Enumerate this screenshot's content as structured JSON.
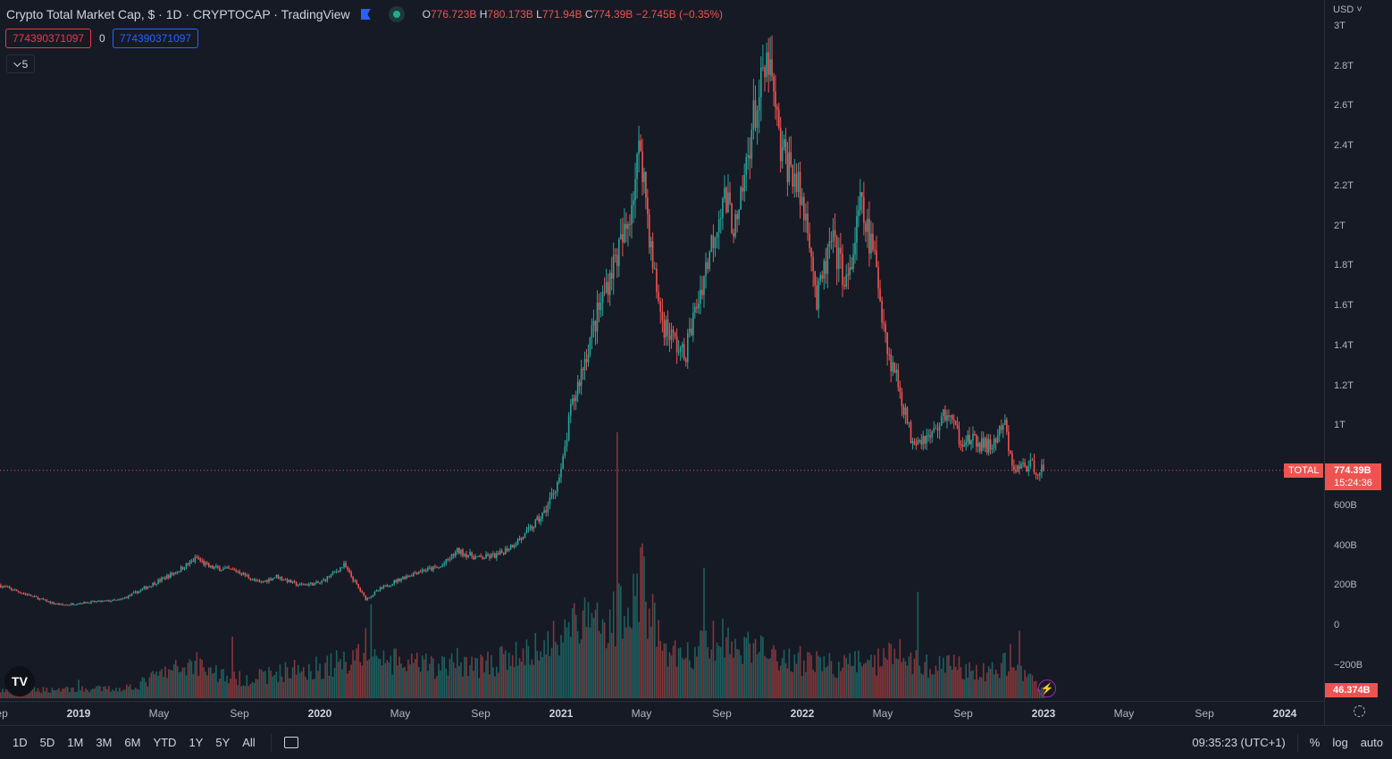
{
  "header": {
    "title": "Crypto Total Market Cap, $ · 1D · CRYPTOCAP · TradingView",
    "ohlc": {
      "o_label": "O",
      "o": "776.723B",
      "h_label": "H",
      "h": "780.173B",
      "l_label": "L",
      "l": "771.94B",
      "c_label": "C",
      "c": "774.39B",
      "change": "−2.745B (−0.35%)"
    },
    "badge_left": "774390371097",
    "badge_mid": "0",
    "badge_right": "774390371097",
    "collapse_count": "5"
  },
  "price_axis": {
    "currency": "USD",
    "labels": [
      "3T",
      "2.8T",
      "2.6T",
      "2.4T",
      "2.2T",
      "2T",
      "1.8T",
      "1.6T",
      "1.4T",
      "1.2T",
      "1T",
      "600B",
      "400B",
      "200B",
      "0",
      "−200B"
    ],
    "values": [
      3,
      2.8,
      2.6,
      2.4,
      2.2,
      2,
      1.8,
      1.6,
      1.4,
      1.2,
      1,
      0.6,
      0.4,
      0.2,
      0,
      -0.2
    ],
    "symbol_tag": "TOTAL",
    "last_price": "774.39B",
    "countdown": "15:24:36",
    "volume_tag": "46.374B"
  },
  "time_axis": {
    "labels": [
      "Sep",
      "2019",
      "May",
      "Sep",
      "2020",
      "May",
      "Sep",
      "2021",
      "May",
      "Sep",
      "2022",
      "May",
      "Sep",
      "2023",
      "May",
      "Sep",
      "2024"
    ],
    "positions": [
      2018.667,
      2019,
      2019.333,
      2019.667,
      2020,
      2020.333,
      2020.667,
      2021,
      2021.333,
      2021.667,
      2022,
      2022.333,
      2022.667,
      2023,
      2023.333,
      2023.667,
      2024
    ]
  },
  "toolbar": {
    "ranges": [
      "1D",
      "5D",
      "1M",
      "3M",
      "6M",
      "YTD",
      "1Y",
      "5Y",
      "All"
    ],
    "clock": "09:35:23 (UTC+1)",
    "percent": "%",
    "log": "log",
    "auto": "auto"
  },
  "colors": {
    "up": "#26a69a",
    "down": "#ef5350",
    "bg": "#161a25",
    "blue": "#2962ff"
  },
  "chart_data": {
    "type": "candlestick",
    "title": "Crypto Total Market Cap",
    "ylabel": "USD (trillions)",
    "ylim": [
      -0.3,
      3.05
    ],
    "xlim": [
      2018.67,
      2024.15
    ],
    "t": [
      2018.67,
      2018.89,
      2018.94,
      2019.0,
      2019.17,
      2019.25,
      2019.33,
      2019.41,
      2019.49,
      2019.54,
      2019.6,
      2019.66,
      2019.75,
      2019.82,
      2019.91,
      2020.0,
      2020.1,
      2020.19,
      2020.25,
      2020.33,
      2020.41,
      2020.5,
      2020.57,
      2020.66,
      2020.74,
      2020.85,
      2020.93,
      2021.0,
      2021.04,
      2021.12,
      2021.21,
      2021.27,
      2021.33,
      2021.38,
      2021.42,
      2021.51,
      2021.6,
      2021.67,
      2021.73,
      2021.79,
      2021.86,
      2021.91,
      2021.96,
      2022.03,
      2022.06,
      2022.12,
      2022.19,
      2022.24,
      2022.3,
      2022.36,
      2022.39,
      2022.45,
      2022.53,
      2022.6,
      2022.65,
      2022.7,
      2022.78,
      2022.84,
      2022.87,
      2022.93,
      2023.0
    ],
    "close": [
      0.2,
      0.11,
      0.1,
      0.11,
      0.125,
      0.17,
      0.22,
      0.27,
      0.335,
      0.29,
      0.28,
      0.27,
      0.21,
      0.245,
      0.2,
      0.21,
      0.3,
      0.13,
      0.18,
      0.23,
      0.27,
      0.29,
      0.37,
      0.335,
      0.35,
      0.45,
      0.56,
      0.76,
      1.07,
      1.43,
      1.79,
      1.97,
      2.41,
      1.79,
      1.52,
      1.34,
      1.79,
      2.15,
      1.97,
      2.5,
      2.82,
      2.37,
      2.28,
      1.97,
      1.61,
      1.92,
      1.7,
      2.1,
      1.83,
      1.34,
      1.25,
      0.94,
      0.94,
      1.07,
      0.94,
      0.92,
      0.89,
      1.0,
      0.78,
      0.8,
      0.774
    ],
    "volume_B": [
      40,
      45,
      50,
      45,
      50,
      70,
      120,
      150,
      190,
      150,
      120,
      100,
      110,
      130,
      150,
      160,
      190,
      260,
      200,
      180,
      170,
      160,
      190,
      170,
      190,
      230,
      260,
      360,
      400,
      380,
      420,
      500,
      620,
      420,
      260,
      200,
      280,
      300,
      230,
      260,
      280,
      200,
      180,
      190,
      200,
      170,
      160,
      210,
      170,
      300,
      230,
      200,
      160,
      170,
      160,
      150,
      140,
      170,
      210,
      120,
      46.374
    ],
    "last_value": 0.77439
  }
}
